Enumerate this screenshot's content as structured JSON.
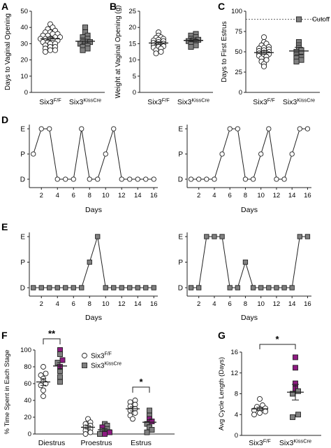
{
  "colors": {
    "open": "#ffffff",
    "gray": "#808080",
    "magenta": "#8e1a82",
    "stroke": "#222222",
    "text": "#000000"
  },
  "panels": {
    "A": {
      "letter": "A"
    },
    "B": {
      "letter": "B"
    },
    "C": {
      "letter": "C"
    },
    "D": {
      "letter": "D"
    },
    "E": {
      "letter": "E"
    },
    "F": {
      "letter": "F"
    },
    "G": {
      "letter": "G"
    }
  },
  "chart_data": [
    {
      "id": "A",
      "type": "scatter",
      "ylabel": "Days to Vaginal Opening",
      "ylim": [
        0,
        50
      ],
      "yticks": [
        0,
        10,
        20,
        30,
        40,
        50
      ],
      "groups": [
        {
          "base": "Six3",
          "sup": "F/F",
          "marker": "circle",
          "values": [
            42,
            40,
            39,
            38,
            37,
            37,
            36,
            36,
            35,
            35,
            34,
            34,
            33,
            33,
            33,
            32,
            32,
            31,
            31,
            30,
            30,
            29,
            28,
            28,
            27,
            26,
            26,
            25
          ],
          "mean": 33,
          "sem": 1.0
        },
        {
          "base": "Six3",
          "sup": "KissCre",
          "marker": "square",
          "values": [
            40,
            37,
            35,
            34,
            33,
            32,
            31,
            30,
            30,
            29,
            28,
            27,
            26
          ],
          "mean": 31.5,
          "sem": 1.2
        }
      ]
    },
    {
      "id": "B",
      "type": "scatter",
      "ylabel": "Weight at Vaginal Opening (g)",
      "ylim": [
        0,
        25
      ],
      "yticks": [
        0,
        5,
        10,
        15,
        20,
        25
      ],
      "groups": [
        {
          "base": "Six3",
          "sup": "F/F",
          "marker": "circle",
          "values": [
            18.5,
            17.5,
            17,
            16.8,
            16.5,
            16.2,
            16,
            15.8,
            15.5,
            15.3,
            15,
            14.8,
            14.5,
            14.2,
            14,
            13.8,
            13.5,
            13,
            12.5,
            12
          ],
          "mean": 15.2,
          "sem": 0.4
        },
        {
          "base": "Six3",
          "sup": "KissCre",
          "marker": "square",
          "values": [
            18,
            17.5,
            17,
            16.5,
            16.2,
            16,
            15.8,
            15.5,
            15,
            14.5,
            14
          ],
          "mean": 16,
          "sem": 0.4
        }
      ]
    },
    {
      "id": "C",
      "type": "scatter",
      "ylabel": "Days to First Estrus",
      "ylim": [
        0,
        100
      ],
      "yticks": [
        0,
        25,
        50,
        75,
        100
      ],
      "cutoff": {
        "value": 90,
        "label": "Cutoff"
      },
      "groups": [
        {
          "base": "Six3",
          "sup": "F/F",
          "marker": "circle",
          "values": [
            68,
            62,
            60,
            58,
            56,
            55,
            54,
            53,
            52,
            51,
            50,
            49,
            48,
            47,
            46,
            45,
            44,
            42,
            40,
            38,
            35,
            32
          ],
          "mean": 49,
          "sem": 2.0
        },
        {
          "base": "Six3",
          "sup": "KissCre",
          "marker": "square",
          "values": [
            90,
            62,
            58,
            55,
            52,
            50,
            48,
            46,
            44,
            42,
            40,
            38
          ],
          "mean": 51,
          "sem": 4.5
        }
      ]
    },
    {
      "id": "D1",
      "type": "line",
      "marker": "circle",
      "fill": "open",
      "xlabel": "Days",
      "xticks": [
        2,
        4,
        6,
        8,
        10,
        12,
        14,
        16
      ],
      "xlim": [
        0.5,
        16.5
      ],
      "ycats": [
        "D",
        "P",
        "E"
      ],
      "x": [
        1,
        2,
        3,
        4,
        5,
        6,
        7,
        8,
        9,
        10,
        11,
        12,
        13,
        14,
        15,
        16
      ],
      "y": [
        "P",
        "E",
        "E",
        "D",
        "D",
        "D",
        "E",
        "D",
        "D",
        "P",
        "E",
        "D",
        "D",
        "D",
        "D",
        "D"
      ]
    },
    {
      "id": "D2",
      "type": "line",
      "marker": "circle",
      "fill": "open",
      "xlabel": "Days",
      "xticks": [
        2,
        4,
        6,
        8,
        10,
        12,
        14,
        16
      ],
      "xlim": [
        0.5,
        16.5
      ],
      "ycats": [
        "D",
        "P",
        "E"
      ],
      "x": [
        1,
        2,
        3,
        4,
        5,
        6,
        7,
        8,
        9,
        10,
        11,
        12,
        13,
        14,
        15,
        16
      ],
      "y": [
        "D",
        "D",
        "D",
        "D",
        "P",
        "E",
        "E",
        "D",
        "D",
        "P",
        "E",
        "D",
        "D",
        "P",
        "E",
        "E"
      ]
    },
    {
      "id": "E1",
      "type": "line",
      "marker": "square",
      "fill": "gray",
      "xlabel": "Days",
      "xticks": [
        2,
        4,
        6,
        8,
        10,
        12,
        14,
        16
      ],
      "xlim": [
        0.5,
        16.5
      ],
      "ycats": [
        "D",
        "P",
        "E"
      ],
      "x": [
        1,
        2,
        3,
        4,
        5,
        6,
        7,
        8,
        9,
        10,
        11,
        12,
        13,
        14,
        15,
        16
      ],
      "y": [
        "D",
        "D",
        "D",
        "D",
        "D",
        "D",
        "D",
        "P",
        "E",
        "D",
        "D",
        "D",
        "D",
        "D",
        "D",
        "D"
      ]
    },
    {
      "id": "E2",
      "type": "line",
      "marker": "square",
      "fill": "gray",
      "xlabel": "Days",
      "xticks": [
        2,
        4,
        6,
        8,
        10,
        12,
        14,
        16
      ],
      "xlim": [
        0.5,
        16.5
      ],
      "ycats": [
        "D",
        "P",
        "E"
      ],
      "x": [
        1,
        2,
        3,
        4,
        5,
        6,
        7,
        8,
        9,
        10,
        11,
        12,
        13,
        14,
        15,
        16
      ],
      "y": [
        "D",
        "D",
        "E",
        "E",
        "E",
        "D",
        "D",
        "P",
        "D",
        "D",
        "D",
        "D",
        "D",
        "D",
        "E",
        "E"
      ]
    },
    {
      "id": "F",
      "type": "scatter",
      "ylabel": "% Time Spent in Each Stage",
      "ylim": [
        0,
        100
      ],
      "yticks": [
        0,
        20,
        40,
        60,
        80,
        100
      ],
      "categories": [
        "Diestrus",
        "Proestrus",
        "Estrus"
      ],
      "legend": [
        {
          "base": "Six3",
          "sup": "F/F",
          "marker": "circle"
        },
        {
          "base": "Six3",
          "sup": "KissCre",
          "marker": "square"
        }
      ],
      "legend_placement": "top-right",
      "significance": [
        {
          "category": "Diestrus",
          "label": "**"
        },
        {
          "category": "Estrus",
          "label": "*"
        }
      ],
      "groups": [
        {
          "category": "Diestrus",
          "series": "Six3F/F",
          "marker": "circle",
          "values": [
            80,
            72,
            70,
            66,
            62,
            60,
            58,
            52,
            45
          ],
          "mean": 62,
          "sem": 4
        },
        {
          "category": "Diestrus",
          "series": "Six3KissCre",
          "marker": "square",
          "values": [
            100,
            95,
            88,
            85,
            80,
            75,
            68,
            62
          ],
          "magenta": [
            true,
            false,
            true,
            false,
            true,
            false,
            false,
            false
          ],
          "mean": 81,
          "sem": 4
        },
        {
          "category": "Proestrus",
          "series": "Six3F/F",
          "marker": "circle",
          "values": [
            18,
            14,
            12,
            10,
            8,
            6,
            4,
            2,
            0
          ],
          "mean": 8,
          "sem": 2
        },
        {
          "category": "Proestrus",
          "series": "Six3KissCre",
          "marker": "square",
          "values": [
            12,
            10,
            8,
            6,
            4,
            2,
            0,
            0
          ],
          "magenta": [
            false,
            false,
            true,
            false,
            false,
            true,
            false,
            true
          ],
          "mean": 5,
          "sem": 1.5
        },
        {
          "category": "Estrus",
          "series": "Six3F/F",
          "marker": "circle",
          "values": [
            40,
            38,
            35,
            33,
            30,
            28,
            25,
            22,
            18
          ],
          "mean": 30,
          "sem": 2.5
        },
        {
          "category": "Estrus",
          "series": "Six3KissCre",
          "marker": "square",
          "values": [
            28,
            22,
            18,
            15,
            12,
            8,
            5,
            2
          ],
          "magenta": [
            false,
            false,
            true,
            true,
            false,
            false,
            false,
            false
          ],
          "mean": 14,
          "sem": 3
        }
      ]
    },
    {
      "id": "G",
      "type": "scatter",
      "ylabel": "Avg Cycle Length (Days)",
      "ylim": [
        0,
        16
      ],
      "yticks": [
        0,
        4,
        8,
        12,
        16
      ],
      "significance": [
        {
          "label": "*"
        }
      ],
      "groups": [
        {
          "base": "Six3",
          "sup": "F/F",
          "marker": "circle",
          "values": [
            7,
            5.8,
            5.5,
            5.2,
            5,
            4.8,
            4.6,
            4.3,
            4
          ],
          "mean": 5.1,
          "sem": 0.3
        },
        {
          "base": "Six3",
          "sup": "KissCre",
          "marker": "square",
          "values": [
            15,
            13,
            10,
            9,
            8.5,
            8,
            4,
            3.5
          ],
          "magenta": [
            true,
            true,
            true,
            true,
            false,
            false,
            false,
            false
          ],
          "mean": 8.3,
          "sem": 1.5
        }
      ]
    }
  ]
}
